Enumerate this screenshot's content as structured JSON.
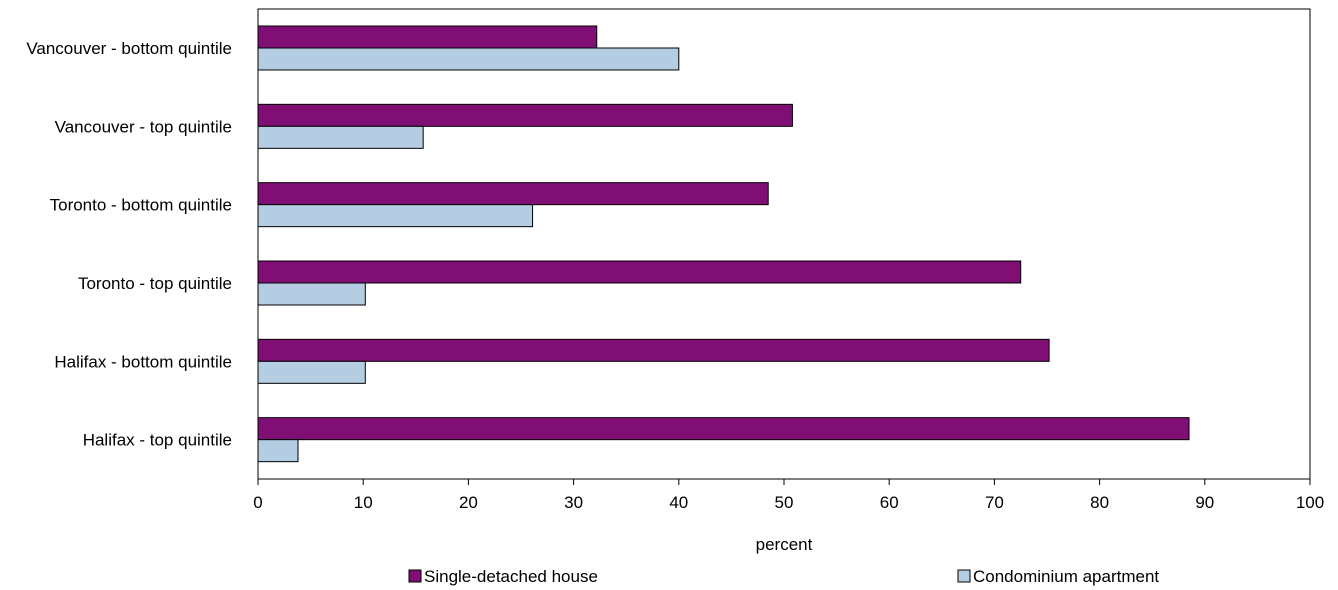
{
  "chart_data": {
    "type": "bar",
    "orientation": "horizontal",
    "categories": [
      "Vancouver - bottom quintile",
      "Vancouver - top quintile",
      "Toronto - bottom quintile",
      "Toronto - top quintile",
      "Halifax - bottom quintile",
      "Halifax - top quintile"
    ],
    "series": [
      {
        "name": "Single-detached house",
        "color": "#800f75",
        "values": [
          32.2,
          50.8,
          48.5,
          72.5,
          75.2,
          88.5
        ]
      },
      {
        "name": "Condominium apartment",
        "color": "#b4cde3",
        "values": [
          40.0,
          15.7,
          26.1,
          10.2,
          10.2,
          3.8
        ]
      }
    ],
    "xlabel": "percent",
    "xlim": [
      0,
      100
    ],
    "xticks": [
      0,
      10,
      20,
      30,
      40,
      50,
      60,
      70,
      80,
      90,
      100
    ],
    "grid": false,
    "legend_position": "bottom"
  }
}
